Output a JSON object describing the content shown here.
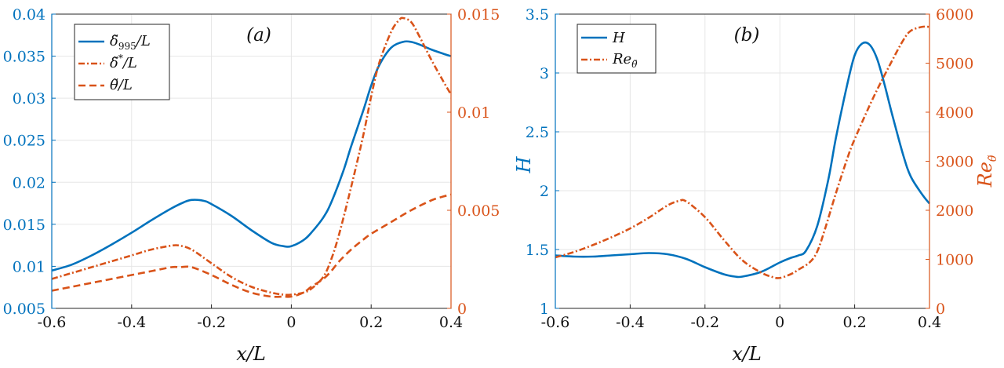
{
  "colors": {
    "left_axis": "#0072BD",
    "right_axis": "#D95319",
    "grid": "#e6e6e6",
    "frame": "#262626"
  },
  "chart_data": [
    {
      "panel": "(a)",
      "type": "line",
      "grid": true,
      "legend_position": "top-left",
      "xlabel": "x/L",
      "xlim": [
        -0.6,
        0.4
      ],
      "x_ticks": [
        "-0.6",
        "-0.4",
        "-0.2",
        "0",
        "0.2",
        "0.4"
      ],
      "ylim_left": [
        0.005,
        0.04
      ],
      "y_ticks_left": [
        "0.005",
        "0.01",
        "0.015",
        "0.02",
        "0.025",
        "0.03",
        "0.035",
        "0.04"
      ],
      "ylim_right": [
        0,
        0.015
      ],
      "y_ticks_right": [
        "0",
        "0.005",
        "0.01",
        "0.015"
      ],
      "series": [
        {
          "name": "δ̃995/L",
          "axis": "left",
          "color": "#0072BD",
          "style": "solid",
          "x": [
            -0.6,
            -0.55,
            -0.5,
            -0.45,
            -0.4,
            -0.35,
            -0.3,
            -0.27,
            -0.25,
            -0.22,
            -0.2,
            -0.15,
            -0.1,
            -0.05,
            -0.02,
            0.0,
            0.03,
            0.05,
            0.08,
            0.1,
            0.13,
            0.15,
            0.18,
            0.2,
            0.22,
            0.25,
            0.28,
            0.3,
            0.32,
            0.35,
            0.38,
            0.4
          ],
          "y": [
            0.0095,
            0.0102,
            0.0113,
            0.0126,
            0.014,
            0.0155,
            0.0169,
            0.0176,
            0.0179,
            0.0178,
            0.0174,
            0.016,
            0.0143,
            0.0128,
            0.0124,
            0.0124,
            0.0131,
            0.014,
            0.0158,
            0.0176,
            0.0213,
            0.0243,
            0.0285,
            0.0315,
            0.0339,
            0.036,
            0.0367,
            0.0367,
            0.0364,
            0.0358,
            0.0353,
            0.035
          ]
        },
        {
          "name": "δ̃*/L",
          "axis": "right",
          "color": "#D95319",
          "style": "dashdot",
          "x": [
            -0.6,
            -0.55,
            -0.5,
            -0.45,
            -0.4,
            -0.35,
            -0.3,
            -0.28,
            -0.25,
            -0.2,
            -0.15,
            -0.1,
            -0.05,
            -0.02,
            0.0,
            0.03,
            0.05,
            0.08,
            0.1,
            0.12,
            0.15,
            0.18,
            0.2,
            0.22,
            0.25,
            0.27,
            0.28,
            0.3,
            0.32,
            0.35,
            0.38,
            0.4
          ],
          "y": [
            0.0015,
            0.0018,
            0.0021,
            0.0024,
            0.0027,
            0.003,
            0.0032,
            0.0032,
            0.003,
            0.0023,
            0.0016,
            0.0011,
            0.0008,
            0.0007,
            0.0007,
            0.0008,
            0.001,
            0.0016,
            0.0025,
            0.0038,
            0.0062,
            0.0088,
            0.0108,
            0.0125,
            0.0141,
            0.0147,
            0.0148,
            0.0146,
            0.0139,
            0.0127,
            0.0116,
            0.0109
          ]
        },
        {
          "name": "θ̃/L",
          "axis": "right",
          "color": "#D95319",
          "style": "dashed",
          "x": [
            -0.6,
            -0.55,
            -0.5,
            -0.45,
            -0.4,
            -0.35,
            -0.3,
            -0.28,
            -0.25,
            -0.2,
            -0.15,
            -0.1,
            -0.05,
            -0.02,
            0.0,
            0.03,
            0.05,
            0.08,
            0.1,
            0.12,
            0.15,
            0.18,
            0.2,
            0.25,
            0.3,
            0.35,
            0.38,
            0.4
          ],
          "y": [
            0.0009,
            0.0011,
            0.0013,
            0.0015,
            0.0017,
            0.0019,
            0.0021,
            0.0021,
            0.0021,
            0.0017,
            0.0012,
            0.0008,
            0.0006,
            0.0006,
            0.0006,
            0.0008,
            0.0011,
            0.0015,
            0.0019,
            0.0024,
            0.003,
            0.0035,
            0.0038,
            0.0044,
            0.005,
            0.0055,
            0.0057,
            0.0058
          ]
        }
      ]
    },
    {
      "panel": "(b)",
      "type": "line",
      "grid": true,
      "legend_position": "top-left",
      "xlabel": "x/L",
      "ylabel_left": "H",
      "ylabel_right": "Re",
      "ylabel_right_sub": "θ̃",
      "xlim": [
        -0.6,
        0.4
      ],
      "x_ticks": [
        "-0.6",
        "-0.4",
        "-0.2",
        "0",
        "0.2",
        "0.4"
      ],
      "ylim_left": [
        1,
        3.5
      ],
      "y_ticks_left": [
        "1",
        "1.5",
        "2",
        "2.5",
        "3",
        "3.5"
      ],
      "ylim_right": [
        0,
        6000
      ],
      "y_ticks_right": [
        "0",
        "1000",
        "2000",
        "3000",
        "4000",
        "5000",
        "6000"
      ],
      "series": [
        {
          "name": "H",
          "axis": "left",
          "color": "#0072BD",
          "style": "solid",
          "x": [
            -0.6,
            -0.55,
            -0.5,
            -0.45,
            -0.4,
            -0.35,
            -0.3,
            -0.25,
            -0.2,
            -0.15,
            -0.12,
            -0.1,
            -0.05,
            0.0,
            0.03,
            0.05,
            0.07,
            0.1,
            0.13,
            0.15,
            0.18,
            0.2,
            0.22,
            0.24,
            0.26,
            0.28,
            0.3,
            0.33,
            0.35,
            0.38,
            0.4
          ],
          "y": [
            1.45,
            1.44,
            1.44,
            1.45,
            1.46,
            1.47,
            1.46,
            1.42,
            1.35,
            1.29,
            1.27,
            1.27,
            1.31,
            1.39,
            1.43,
            1.45,
            1.49,
            1.7,
            2.1,
            2.45,
            2.9,
            3.15,
            3.25,
            3.24,
            3.12,
            2.9,
            2.65,
            2.3,
            2.12,
            1.97,
            1.89
          ]
        },
        {
          "name": "Re",
          "name_sub": "θ̃",
          "axis": "right",
          "color": "#D95319",
          "style": "dashdot",
          "x": [
            -0.6,
            -0.55,
            -0.5,
            -0.45,
            -0.4,
            -0.35,
            -0.3,
            -0.27,
            -0.25,
            -0.2,
            -0.15,
            -0.1,
            -0.05,
            -0.02,
            0.0,
            0.03,
            0.05,
            0.08,
            0.1,
            0.12,
            0.15,
            0.18,
            0.2,
            0.25,
            0.3,
            0.33,
            0.35,
            0.38,
            0.4
          ],
          "y": [
            1040,
            1150,
            1290,
            1450,
            1630,
            1850,
            2100,
            2190,
            2180,
            1860,
            1400,
            980,
            730,
            640,
            620,
            700,
            790,
            940,
            1160,
            1600,
            2350,
            3050,
            3450,
            4300,
            5050,
            5470,
            5660,
            5740,
            5740
          ]
        }
      ]
    }
  ]
}
